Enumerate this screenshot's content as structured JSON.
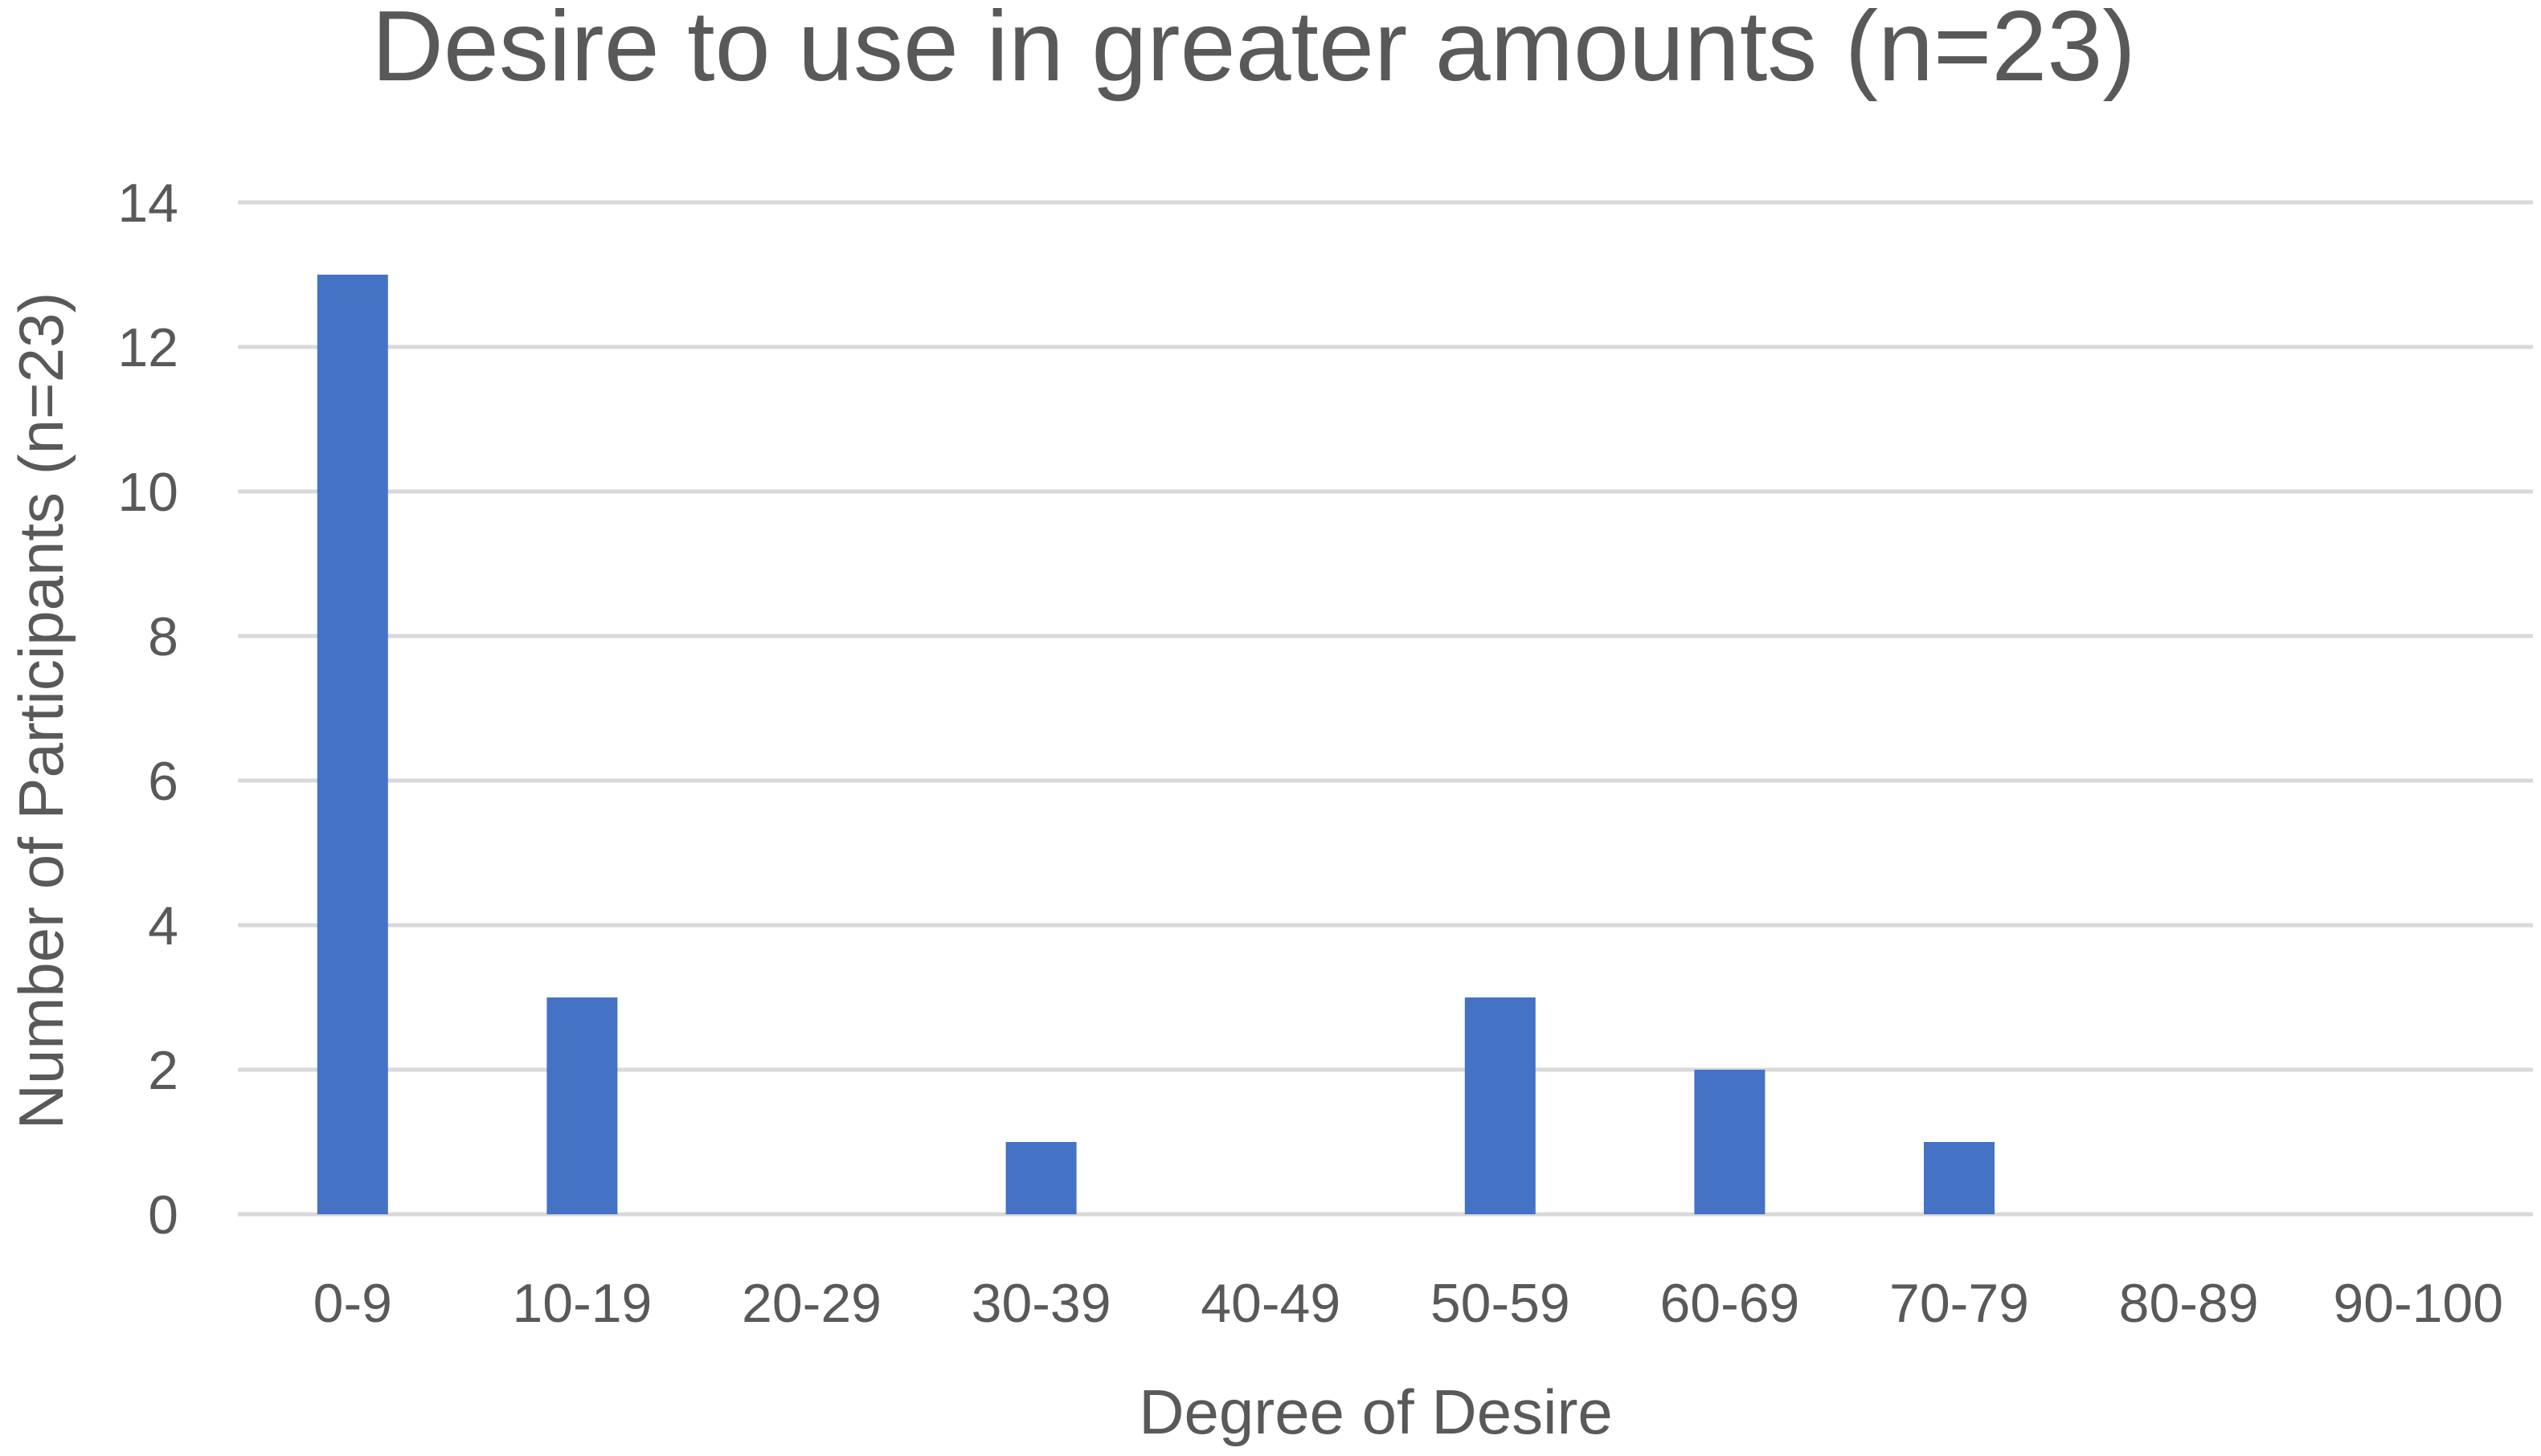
{
  "chart_data": {
    "type": "bar",
    "title": "Desire to use in greater amounts (n=23)",
    "xlabel": "Degree of Desire",
    "ylabel": "Number of Participants (n=23)",
    "categories": [
      "0-9",
      "10-19",
      "20-29",
      "30-39",
      "40-49",
      "50-59",
      "60-69",
      "70-79",
      "80-89",
      "90-100"
    ],
    "values": [
      13,
      3,
      0,
      1,
      0,
      3,
      2,
      1,
      0,
      0
    ],
    "ylim": [
      0,
      14
    ],
    "yticks": [
      0,
      2,
      4,
      6,
      8,
      10,
      12,
      14
    ],
    "grid": true,
    "legend": "none",
    "colors": {
      "bar": "#4472c4",
      "grid": "#d9d9d9",
      "text": "#595959"
    }
  }
}
